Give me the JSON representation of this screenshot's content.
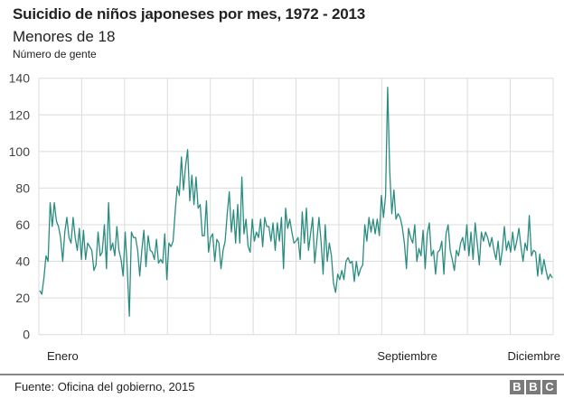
{
  "chart_data": {
    "type": "line",
    "title": "Suicidio de niños japoneses por mes, 1972 - 2013",
    "subtitle": "Menores de 18",
    "ylabel": "Número de gente",
    "xlabel": "",
    "ylim": [
      0,
      140
    ],
    "yticks": [
      0,
      20,
      40,
      60,
      80,
      100,
      120,
      140
    ],
    "x_month_labels": [
      {
        "label": "Enero",
        "month": 1
      },
      {
        "label": "Septiembre",
        "month": 9
      },
      {
        "label": "Diciembre",
        "month": 12
      }
    ],
    "x_span": "Enero - Diciembre",
    "grid": true,
    "line_color": "#2a8c80",
    "values": [
      24,
      22,
      31,
      43,
      40,
      72,
      59,
      72,
      62,
      59,
      53,
      40,
      56,
      64,
      53,
      50,
      64,
      53,
      46,
      58,
      41,
      57,
      41,
      50,
      48,
      46,
      35,
      38,
      56,
      43,
      45,
      60,
      36,
      72,
      46,
      50,
      43,
      59,
      46,
      41,
      32,
      56,
      36,
      10,
      56,
      53,
      53,
      46,
      32,
      46,
      57,
      37,
      54,
      46,
      45,
      41,
      52,
      39,
      41,
      39,
      55,
      30,
      50,
      48,
      51,
      67,
      81,
      76,
      97,
      79,
      92,
      101,
      73,
      87,
      71,
      86,
      69,
      71,
      54,
      54,
      73,
      45,
      53,
      55,
      40,
      52,
      50,
      36,
      46,
      51,
      66,
      78,
      56,
      68,
      50,
      71,
      50,
      86,
      55,
      63,
      48,
      45,
      63,
      51,
      56,
      53,
      63,
      48,
      64,
      59,
      59,
      51,
      61,
      46,
      61,
      51,
      64,
      36,
      69,
      58,
      63,
      56,
      50,
      51,
      53,
      41,
      67,
      50,
      69,
      46,
      55,
      64,
      39,
      51,
      64,
      51,
      33,
      60,
      40,
      50,
      43,
      28,
      23,
      33,
      30,
      35,
      30,
      40,
      42,
      39,
      40,
      29,
      40,
      32,
      36,
      38,
      60,
      51,
      64,
      56,
      63,
      55,
      63,
      54,
      76,
      64,
      76,
      135,
      89,
      66,
      79,
      63,
      66,
      64,
      59,
      50,
      36,
      58,
      53,
      50,
      60,
      40,
      47,
      43,
      57,
      36,
      55,
      61,
      43,
      46,
      33,
      45,
      46,
      51,
      33,
      55,
      60,
      46,
      41,
      35,
      46,
      43,
      50,
      53,
      46,
      60,
      43,
      56,
      41,
      61,
      50,
      38,
      56,
      51,
      56,
      53,
      48,
      53,
      46,
      41,
      51,
      38,
      46,
      59,
      46,
      51,
      45,
      56,
      46,
      51,
      58,
      48,
      40,
      50,
      46,
      65,
      43,
      46,
      45,
      32,
      44,
      33,
      41,
      35,
      30,
      33,
      31
    ]
  },
  "footer": {
    "source": "Fuente: Oficina del gobierno, 2015",
    "logo_letters": [
      "B",
      "B",
      "C"
    ]
  }
}
